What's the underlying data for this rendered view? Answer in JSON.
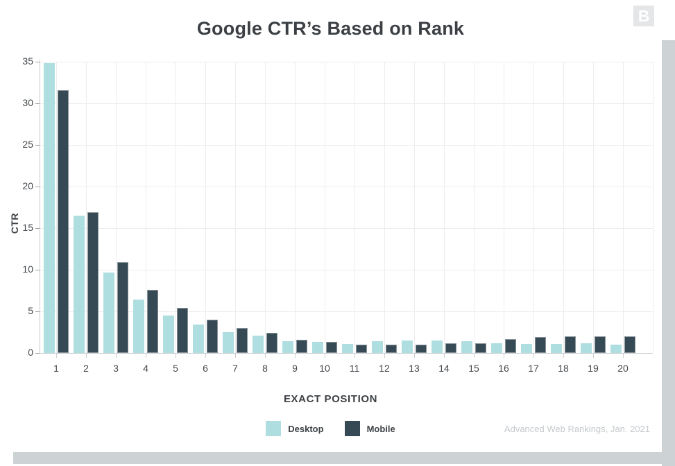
{
  "chart_data": {
    "type": "bar",
    "title": "Google CTR’s Based on Rank",
    "xlabel": "EXACT POSITION",
    "ylabel": "CTR",
    "ylim": [
      0,
      35
    ],
    "yticks": [
      0,
      5,
      10,
      15,
      20,
      25,
      30,
      35
    ],
    "categories": [
      "1",
      "2",
      "3",
      "4",
      "5",
      "6",
      "7",
      "8",
      "9",
      "10",
      "11",
      "12",
      "13",
      "14",
      "15",
      "16",
      "17",
      "18",
      "19",
      "20"
    ],
    "series": [
      {
        "name": "Desktop",
        "color": "#afdee1",
        "values": [
          34.8,
          16.5,
          9.7,
          6.4,
          4.5,
          3.4,
          2.5,
          2.1,
          1.4,
          1.3,
          1.1,
          1.4,
          1.5,
          1.5,
          1.4,
          1.2,
          1.1,
          1.1,
          1.2,
          1.0
        ]
      },
      {
        "name": "Mobile",
        "color": "#354a55",
        "border_color": "#8b949a",
        "values": [
          31.6,
          16.9,
          10.9,
          7.6,
          5.4,
          4.0,
          3.0,
          2.4,
          1.6,
          1.3,
          1.0,
          1.0,
          1.0,
          1.2,
          1.2,
          1.7,
          1.9,
          2.0,
          2.0,
          2.0
        ]
      }
    ],
    "grid": true,
    "legend_position": "bottom"
  },
  "attribution": "Advanced Web Rankings, Jan. 2021",
  "logo": {
    "letter": "B"
  },
  "colors": {
    "grid": "#ededed",
    "y_axis_line": "#c6c9cb",
    "y_tick": "#9aa0a3",
    "x_axis_line": "#c9ccce",
    "x_tick": "#cfcfcf",
    "tick_text": "#43474b",
    "logo_bg": "#e4e6e8",
    "scrollbar": "#cdd2d5"
  }
}
